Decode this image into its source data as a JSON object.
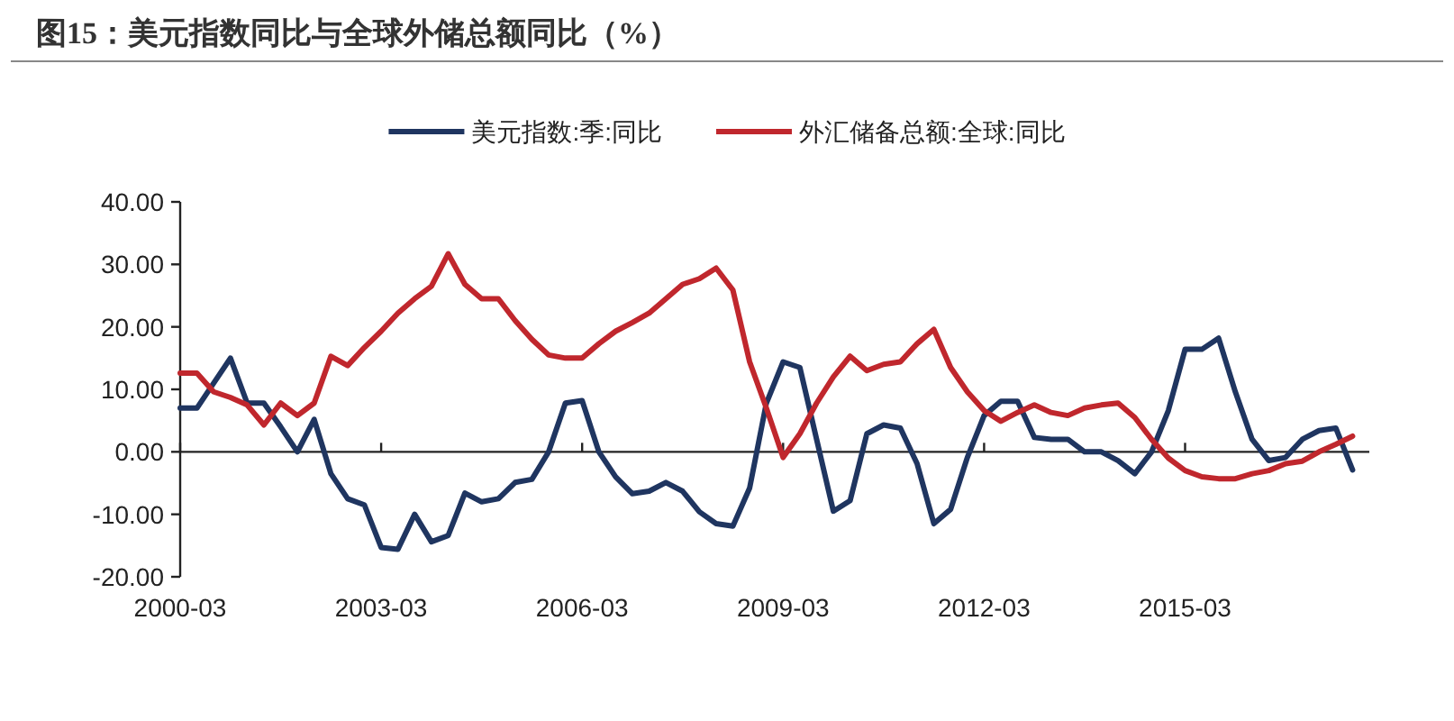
{
  "chart_data": {
    "type": "line",
    "title": "图15：美元指数同比与全球外储总额同比（%）",
    "x": [
      "2000-03",
      "2000-06",
      "2000-09",
      "2000-12",
      "2001-03",
      "2001-06",
      "2001-09",
      "2001-12",
      "2002-03",
      "2002-06",
      "2002-09",
      "2002-12",
      "2003-03",
      "2003-06",
      "2003-09",
      "2003-12",
      "2004-03",
      "2004-06",
      "2004-09",
      "2004-12",
      "2005-03",
      "2005-06",
      "2005-09",
      "2005-12",
      "2006-03",
      "2006-06",
      "2006-09",
      "2006-12",
      "2007-03",
      "2007-06",
      "2007-09",
      "2007-12",
      "2008-03",
      "2008-06",
      "2008-09",
      "2008-12",
      "2009-03",
      "2009-06",
      "2009-09",
      "2009-12",
      "2010-03",
      "2010-06",
      "2010-09",
      "2010-12",
      "2011-03",
      "2011-06",
      "2011-09",
      "2011-12",
      "2012-03",
      "2012-06",
      "2012-09",
      "2012-12",
      "2013-03",
      "2013-06",
      "2013-09",
      "2013-12",
      "2014-03",
      "2014-06",
      "2014-09",
      "2014-12",
      "2015-03",
      "2015-06",
      "2015-09",
      "2015-12",
      "2016-03",
      "2016-06",
      "2016-09",
      "2016-12",
      "2017-03",
      "2017-06",
      "2017-09"
    ],
    "series": [
      {
        "name": "美元指数:季:同比",
        "color": "#1f3560",
        "values": [
          7,
          7,
          11,
          15,
          7.8,
          7.8,
          4,
          0,
          5.2,
          -3.5,
          -7.5,
          -8.5,
          -15.3,
          -15.6,
          -10,
          -14.4,
          -13.4,
          -6.6,
          -8,
          -7.5,
          -4.9,
          -4.4,
          0,
          7.8,
          8.2,
          0,
          -4,
          -6.7,
          -6.3,
          -4.9,
          -6.3,
          -9.6,
          -11.5,
          -11.9,
          -5.8,
          7.8,
          14.4,
          13.5,
          2,
          -9.5,
          -7.8,
          2.9,
          4.3,
          3.8,
          -1.9,
          -11.5,
          -9.2,
          -0.9,
          5.8,
          8.1,
          8.1,
          2.3,
          2,
          2,
          0,
          0,
          -1.4,
          -3.5,
          0,
          6.6,
          16.4,
          16.4,
          18.2,
          9.6,
          2,
          -1.4,
          -0.9,
          2,
          3.4,
          3.8,
          -2.9
        ]
      },
      {
        "name": "外汇储备总额:全球:同比",
        "color": "#c0272d",
        "values": [
          12.6,
          12.6,
          9.6,
          8.7,
          7.5,
          4.3,
          7.8,
          5.8,
          7.8,
          15.3,
          13.8,
          16.7,
          19.3,
          22.2,
          24.5,
          26.5,
          31.7,
          26.8,
          24.5,
          24.5,
          21,
          18,
          15.5,
          15,
          15,
          17.3,
          19.3,
          20.7,
          22.2,
          24.5,
          26.8,
          27.7,
          29.4,
          25.9,
          14.4,
          7,
          -0.9,
          2.9,
          7.8,
          12,
          15.3,
          13,
          14,
          14.4,
          17.3,
          19.6,
          13.5,
          9.6,
          6.6,
          4.9,
          6.3,
          7.5,
          6.3,
          5.8,
          7,
          7.5,
          7.8,
          5.5,
          2,
          -1,
          -3,
          -4,
          -4.3,
          -4.3,
          -3.5,
          -3,
          -1.9,
          -1.5,
          0,
          1.2,
          2.5
        ]
      }
    ],
    "xlim": [
      "2000-03",
      "2017-12"
    ],
    "xticks": [
      "2000-03",
      "2003-03",
      "2006-03",
      "2009-03",
      "2012-03",
      "2015-03"
    ],
    "ylim": [
      -20,
      40
    ],
    "yticks": [
      {
        "value": 40,
        "label": "40.00"
      },
      {
        "value": 30,
        "label": "30.00"
      },
      {
        "value": 20,
        "label": "20.00"
      },
      {
        "value": 10,
        "label": "10.00"
      },
      {
        "value": 0,
        "label": "0.00"
      },
      {
        "value": -10,
        "label": "-10.00"
      },
      {
        "value": -20,
        "label": "-20.00"
      }
    ],
    "legend": "top",
    "line_style": "solid",
    "marker": "none"
  }
}
